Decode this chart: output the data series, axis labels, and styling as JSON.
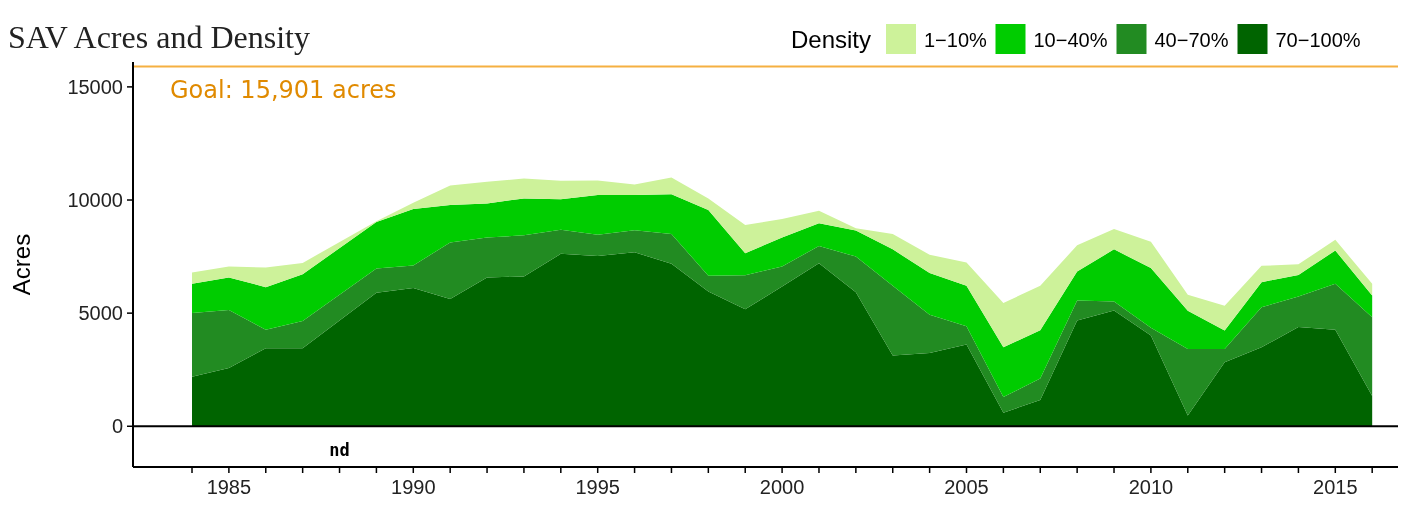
{
  "chart_data": {
    "type": "area",
    "stacked": true,
    "title": "SAV Acres and Density",
    "ylabel": "Acres",
    "legend_title": "Density",
    "legend": "top right",
    "grid": false,
    "x": [
      1984,
      1985,
      1986,
      1987,
      1989,
      1990,
      1991,
      1992,
      1993,
      1994,
      1995,
      1996,
      1997,
      1998,
      1999,
      2000,
      2001,
      2002,
      2003,
      2004,
      2005,
      2006,
      2007,
      2008,
      2009,
      2010,
      2011,
      2012,
      2013,
      2014,
      2015,
      2016
    ],
    "xlim": [
      1982.4,
      2016.7
    ],
    "xticks": [
      {
        "value": 1984,
        "label": null
      },
      {
        "value": 1985,
        "label": "1985"
      },
      {
        "value": 1986,
        "label": null
      },
      {
        "value": 1987,
        "label": null
      },
      {
        "value": 1988,
        "label": null
      },
      {
        "value": 1989,
        "label": null
      },
      {
        "value": 1990,
        "label": "1990"
      },
      {
        "value": 1991,
        "label": null
      },
      {
        "value": 1992,
        "label": null
      },
      {
        "value": 1993,
        "label": null
      },
      {
        "value": 1994,
        "label": null
      },
      {
        "value": 1995,
        "label": "1995"
      },
      {
        "value": 1996,
        "label": null
      },
      {
        "value": 1997,
        "label": null
      },
      {
        "value": 1998,
        "label": null
      },
      {
        "value": 1999,
        "label": null
      },
      {
        "value": 2000,
        "label": "2000"
      },
      {
        "value": 2001,
        "label": null
      },
      {
        "value": 2002,
        "label": null
      },
      {
        "value": 2003,
        "label": null
      },
      {
        "value": 2004,
        "label": null
      },
      {
        "value": 2005,
        "label": "2005"
      },
      {
        "value": 2006,
        "label": null
      },
      {
        "value": 2007,
        "label": null
      },
      {
        "value": 2008,
        "label": null
      },
      {
        "value": 2009,
        "label": null
      },
      {
        "value": 2010,
        "label": "2010"
      },
      {
        "value": 2011,
        "label": null
      },
      {
        "value": 2012,
        "label": null
      },
      {
        "value": 2013,
        "label": null
      },
      {
        "value": 2014,
        "label": null
      },
      {
        "value": 2015,
        "label": "2015"
      },
      {
        "value": 2016,
        "label": null
      }
    ],
    "ylim": [
      -1800,
      16100
    ],
    "yticks": [
      0,
      5000,
      10000,
      15000
    ],
    "series": [
      {
        "name": "70−100%",
        "color": "#006400",
        "values": [
          2190,
          2580,
          3450,
          3450,
          5900,
          6110,
          5620,
          6580,
          6620,
          7620,
          7530,
          7690,
          7180,
          5960,
          5170,
          6180,
          7210,
          5920,
          3130,
          3240,
          3610,
          600,
          1160,
          4670,
          5120,
          4010,
          480,
          2830,
          3490,
          4390,
          4270,
          1340
        ]
      },
      {
        "name": "40−70%",
        "color": "#228b22",
        "values": [
          2820,
          2560,
          820,
          1200,
          1070,
          1000,
          2500,
          1760,
          1820,
          1070,
          940,
          970,
          1320,
          690,
          1500,
          880,
          760,
          1580,
          3080,
          1690,
          810,
          690,
          950,
          890,
          400,
          340,
          2940,
          590,
          1770,
          1350,
          2030,
          3480
        ]
      },
      {
        "name": "10−40%",
        "color": "#00cc00",
        "values": [
          1290,
          1440,
          1880,
          2070,
          2060,
          2490,
          1660,
          1510,
          1630,
          1340,
          1750,
          1560,
          1750,
          2910,
          980,
          1280,
          1000,
          1150,
          1610,
          1840,
          1790,
          2200,
          2130,
          1280,
          2300,
          2640,
          1690,
          810,
          1110,
          950,
          1470,
          960
        ]
      },
      {
        "name": "1−10%",
        "color": "#cdf29a",
        "values": [
          500,
          480,
          870,
          500,
          30,
          280,
          860,
          960,
          880,
          820,
          640,
          470,
          750,
          510,
          1250,
          820,
          560,
          100,
          680,
          810,
          1030,
          1960,
          1970,
          1160,
          900,
          1170,
          700,
          1100,
          720,
          470,
          470,
          520
        ]
      }
    ],
    "ref_lines": [
      {
        "axis": "y",
        "value": 15901,
        "label": "Goal: 15,901 acres",
        "color": "#f5b041"
      },
      {
        "axis": "y",
        "value": 0,
        "color": "#000000"
      }
    ],
    "annotations": [
      "nd"
    ]
  }
}
